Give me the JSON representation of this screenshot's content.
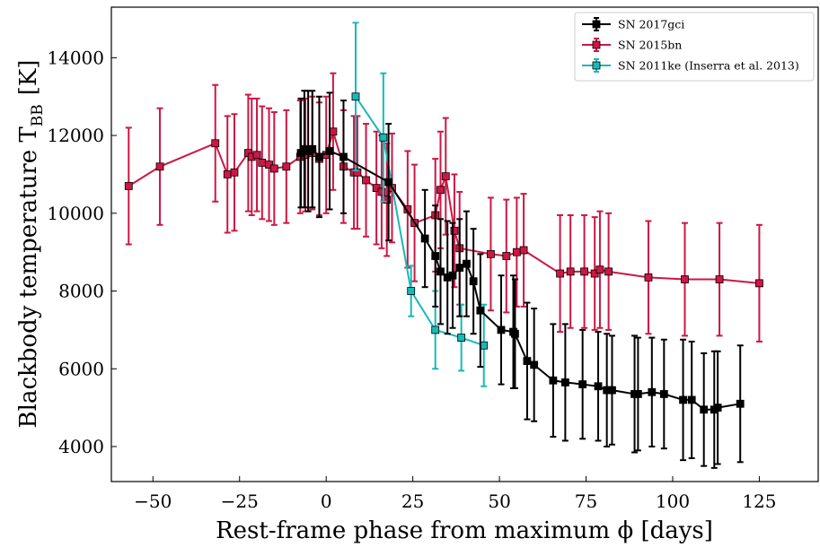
{
  "chart_data": {
    "type": "scatter",
    "xlabel": "Rest-frame phase from maximum ϕ [days]",
    "ylabel": "Blackbody temperature T",
    "ylabel_sub": "BB",
    "ylabel_unit": "[K]",
    "xlim": [
      -62,
      142
    ],
    "ylim": [
      3100,
      15300
    ],
    "xticks": [
      -50,
      -25,
      0,
      25,
      50,
      75,
      100,
      125
    ],
    "xtick_labels": [
      "−50",
      "−25",
      "0",
      "25",
      "50",
      "75",
      "100",
      "125"
    ],
    "yticks": [
      4000,
      6000,
      8000,
      10000,
      12000,
      14000
    ],
    "ytick_labels": [
      "4000",
      "6000",
      "8000",
      "10000",
      "12000",
      "14000"
    ],
    "legend_placement": "top-right",
    "series": [
      {
        "name": "SN 2017gci",
        "color": "#000000",
        "marker_fill": "#000000",
        "points": [
          {
            "x": -7.3,
            "y": 11550,
            "err": 1400
          },
          {
            "x": -6.3,
            "y": 11650,
            "err": 1500
          },
          {
            "x": -5.2,
            "y": 11600,
            "err": 1550
          },
          {
            "x": -4.0,
            "y": 11650,
            "err": 1500
          },
          {
            "x": -2.0,
            "y": 11450,
            "err": 1550
          },
          {
            "x": 1.0,
            "y": 11600,
            "err": 1500
          },
          {
            "x": 5.0,
            "y": 11450,
            "err": 1450
          },
          {
            "x": 18.0,
            "y": 10800,
            "err": 1500
          },
          {
            "x": 28.5,
            "y": 9350,
            "err": 1250
          },
          {
            "x": 31.5,
            "y": 8900,
            "err": 1300
          },
          {
            "x": 33.0,
            "y": 8500,
            "err": 1350
          },
          {
            "x": 35.0,
            "y": 8350,
            "err": 1450
          },
          {
            "x": 36.5,
            "y": 8400,
            "err": 1350
          },
          {
            "x": 38.5,
            "y": 8600,
            "err": 1250
          },
          {
            "x": 40.5,
            "y": 8700,
            "err": 1350
          },
          {
            "x": 42.5,
            "y": 8250,
            "err": 1350
          },
          {
            "x": 44.5,
            "y": 7500,
            "err": 1450
          },
          {
            "x": 50.5,
            "y": 7000,
            "err": 1400
          },
          {
            "x": 54.0,
            "y": 6950,
            "err": 1450
          },
          {
            "x": 54.5,
            "y": 6900,
            "err": 1400
          },
          {
            "x": 58.0,
            "y": 6200,
            "err": 1500
          },
          {
            "x": 60.0,
            "y": 6100,
            "err": 1450
          },
          {
            "x": 65.5,
            "y": 5700,
            "err": 1450
          },
          {
            "x": 69.0,
            "y": 5650,
            "err": 1500
          },
          {
            "x": 74.0,
            "y": 5600,
            "err": 1400
          },
          {
            "x": 78.5,
            "y": 5550,
            "err": 1400
          },
          {
            "x": 81.0,
            "y": 5450,
            "err": 1450
          },
          {
            "x": 82.5,
            "y": 5450,
            "err": 1400
          },
          {
            "x": 89.0,
            "y": 5350,
            "err": 1500
          },
          {
            "x": 90.0,
            "y": 5350,
            "err": 1450
          },
          {
            "x": 94.0,
            "y": 5400,
            "err": 1400
          },
          {
            "x": 97.5,
            "y": 5350,
            "err": 1400
          },
          {
            "x": 103.0,
            "y": 5200,
            "err": 1550
          },
          {
            "x": 105.5,
            "y": 5200,
            "err": 1500
          },
          {
            "x": 109.0,
            "y": 4950,
            "err": 1450
          },
          {
            "x": 112.0,
            "y": 4950,
            "err": 1500
          },
          {
            "x": 113.0,
            "y": 5000,
            "err": 1450
          },
          {
            "x": 119.5,
            "y": 5100,
            "err": 1500
          }
        ]
      },
      {
        "name": "SN 2015bn",
        "color": "#cc1744",
        "marker_fill": "#cc1744",
        "points": [
          {
            "x": -57.0,
            "y": 10700,
            "err": 1500
          },
          {
            "x": -48.0,
            "y": 11200,
            "err": 1500
          },
          {
            "x": -32.0,
            "y": 11800,
            "err": 1500
          },
          {
            "x": -28.5,
            "y": 11000,
            "err": 1500
          },
          {
            "x": -26.5,
            "y": 11050,
            "err": 1500
          },
          {
            "x": -22.5,
            "y": 11550,
            "err": 1500
          },
          {
            "x": -21.5,
            "y": 11450,
            "err": 1500
          },
          {
            "x": -20.0,
            "y": 11500,
            "err": 1450
          },
          {
            "x": -18.5,
            "y": 11300,
            "err": 1450
          },
          {
            "x": -16.5,
            "y": 11250,
            "err": 1450
          },
          {
            "x": -15.0,
            "y": 11150,
            "err": 1450
          },
          {
            "x": -11.5,
            "y": 11200,
            "err": 1450
          },
          {
            "x": -7.5,
            "y": 11450,
            "err": 1450
          },
          {
            "x": -6.0,
            "y": 11500,
            "err": 1450
          },
          {
            "x": -4.0,
            "y": 11550,
            "err": 1450
          },
          {
            "x": -2.0,
            "y": 11400,
            "err": 1450
          },
          {
            "x": 0.0,
            "y": 11500,
            "err": 1500
          },
          {
            "x": 2.0,
            "y": 12100,
            "err": 1500
          },
          {
            "x": 5.0,
            "y": 11200,
            "err": 1450
          },
          {
            "x": 8.0,
            "y": 11050,
            "err": 1450
          },
          {
            "x": 9.0,
            "y": 11050,
            "err": 1450
          },
          {
            "x": 11.5,
            "y": 10850,
            "err": 1450
          },
          {
            "x": 14.5,
            "y": 10650,
            "err": 1450
          },
          {
            "x": 16.0,
            "y": 10550,
            "err": 1450
          },
          {
            "x": 17.5,
            "y": 10350,
            "err": 1450
          },
          {
            "x": 19.0,
            "y": 10650,
            "err": 1400
          },
          {
            "x": 23.5,
            "y": 10100,
            "err": 1500
          },
          {
            "x": 25.5,
            "y": 9750,
            "err": 1500
          },
          {
            "x": 31.5,
            "y": 9950,
            "err": 1450
          },
          {
            "x": 33.0,
            "y": 10600,
            "err": 1500
          },
          {
            "x": 34.5,
            "y": 10950,
            "err": 1500
          },
          {
            "x": 37.0,
            "y": 9550,
            "err": 1450
          },
          {
            "x": 38.5,
            "y": 9100,
            "err": 1450
          },
          {
            "x": 47.5,
            "y": 8950,
            "err": 1450
          },
          {
            "x": 52.0,
            "y": 8900,
            "err": 1450
          },
          {
            "x": 55.0,
            "y": 9000,
            "err": 1400
          },
          {
            "x": 57.0,
            "y": 9050,
            "err": 1450
          },
          {
            "x": 67.5,
            "y": 8450,
            "err": 1500
          },
          {
            "x": 70.5,
            "y": 8500,
            "err": 1450
          },
          {
            "x": 74.5,
            "y": 8500,
            "err": 1450
          },
          {
            "x": 77.5,
            "y": 8450,
            "err": 1450
          },
          {
            "x": 79.0,
            "y": 8550,
            "err": 1500
          },
          {
            "x": 81.5,
            "y": 8500,
            "err": 1500
          },
          {
            "x": 93.0,
            "y": 8350,
            "err": 1450
          },
          {
            "x": 103.5,
            "y": 8300,
            "err": 1450
          },
          {
            "x": 113.5,
            "y": 8300,
            "err": 1450
          },
          {
            "x": 125.0,
            "y": 8200,
            "err": 1500
          }
        ]
      },
      {
        "name": "SN 2011ke (Inserra et al. 2013)",
        "color": "#1ab8b8",
        "marker_fill": "#1ab8b8",
        "points": [
          {
            "x": 8.5,
            "y": 13000,
            "err": 1900
          },
          {
            "x": 16.5,
            "y": 11950,
            "err": 1650
          },
          {
            "x": 24.5,
            "y": 8000,
            "err": 650
          },
          {
            "x": 31.5,
            "y": 7000,
            "err": 1000
          },
          {
            "x": 39.0,
            "y": 6800,
            "err": 850
          },
          {
            "x": 45.5,
            "y": 6600,
            "err": 1050
          }
        ]
      }
    ]
  }
}
